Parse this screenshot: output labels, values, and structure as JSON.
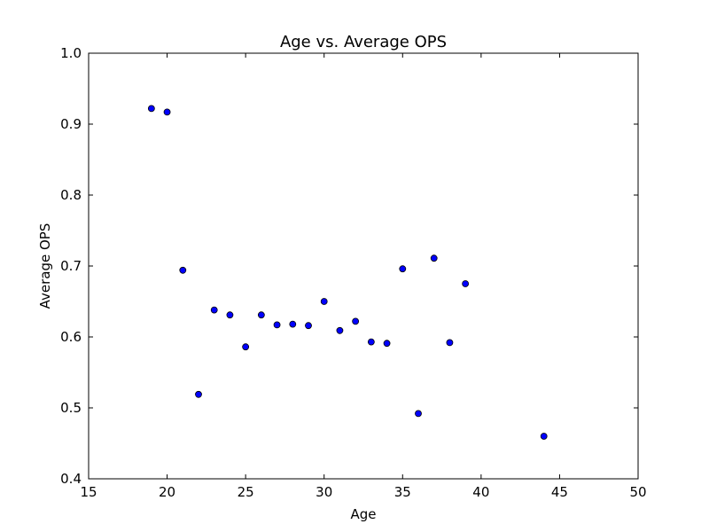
{
  "chart_data": {
    "type": "scatter",
    "title": "Age vs. Average OPS",
    "xlabel": "Age",
    "ylabel": "Average OPS",
    "xlim": [
      15,
      50
    ],
    "ylim": [
      0.4,
      1.0
    ],
    "xticks": [
      15,
      20,
      25,
      30,
      35,
      40,
      45,
      50
    ],
    "yticks": [
      0.4,
      0.5,
      0.6,
      0.7,
      0.8,
      0.9,
      1.0
    ],
    "xtick_labels": [
      "15",
      "20",
      "25",
      "30",
      "35",
      "40",
      "45",
      "50"
    ],
    "ytick_labels": [
      "0.4",
      "0.5",
      "0.6",
      "0.7",
      "0.8",
      "0.9",
      "1.0"
    ],
    "grid": false,
    "marker_color": "#0000ff",
    "points": [
      {
        "x": 19,
        "y": 0.922
      },
      {
        "x": 20,
        "y": 0.917
      },
      {
        "x": 21,
        "y": 0.694
      },
      {
        "x": 22,
        "y": 0.519
      },
      {
        "x": 23,
        "y": 0.638
      },
      {
        "x": 24,
        "y": 0.631
      },
      {
        "x": 25,
        "y": 0.586
      },
      {
        "x": 26,
        "y": 0.631
      },
      {
        "x": 27,
        "y": 0.617
      },
      {
        "x": 28,
        "y": 0.618
      },
      {
        "x": 29,
        "y": 0.616
      },
      {
        "x": 30,
        "y": 0.65
      },
      {
        "x": 31,
        "y": 0.609
      },
      {
        "x": 32,
        "y": 0.622
      },
      {
        "x": 33,
        "y": 0.593
      },
      {
        "x": 34,
        "y": 0.591
      },
      {
        "x": 35,
        "y": 0.696
      },
      {
        "x": 36,
        "y": 0.492
      },
      {
        "x": 37,
        "y": 0.711
      },
      {
        "x": 38,
        "y": 0.592
      },
      {
        "x": 39,
        "y": 0.675
      },
      {
        "x": 44,
        "y": 0.46
      }
    ]
  }
}
